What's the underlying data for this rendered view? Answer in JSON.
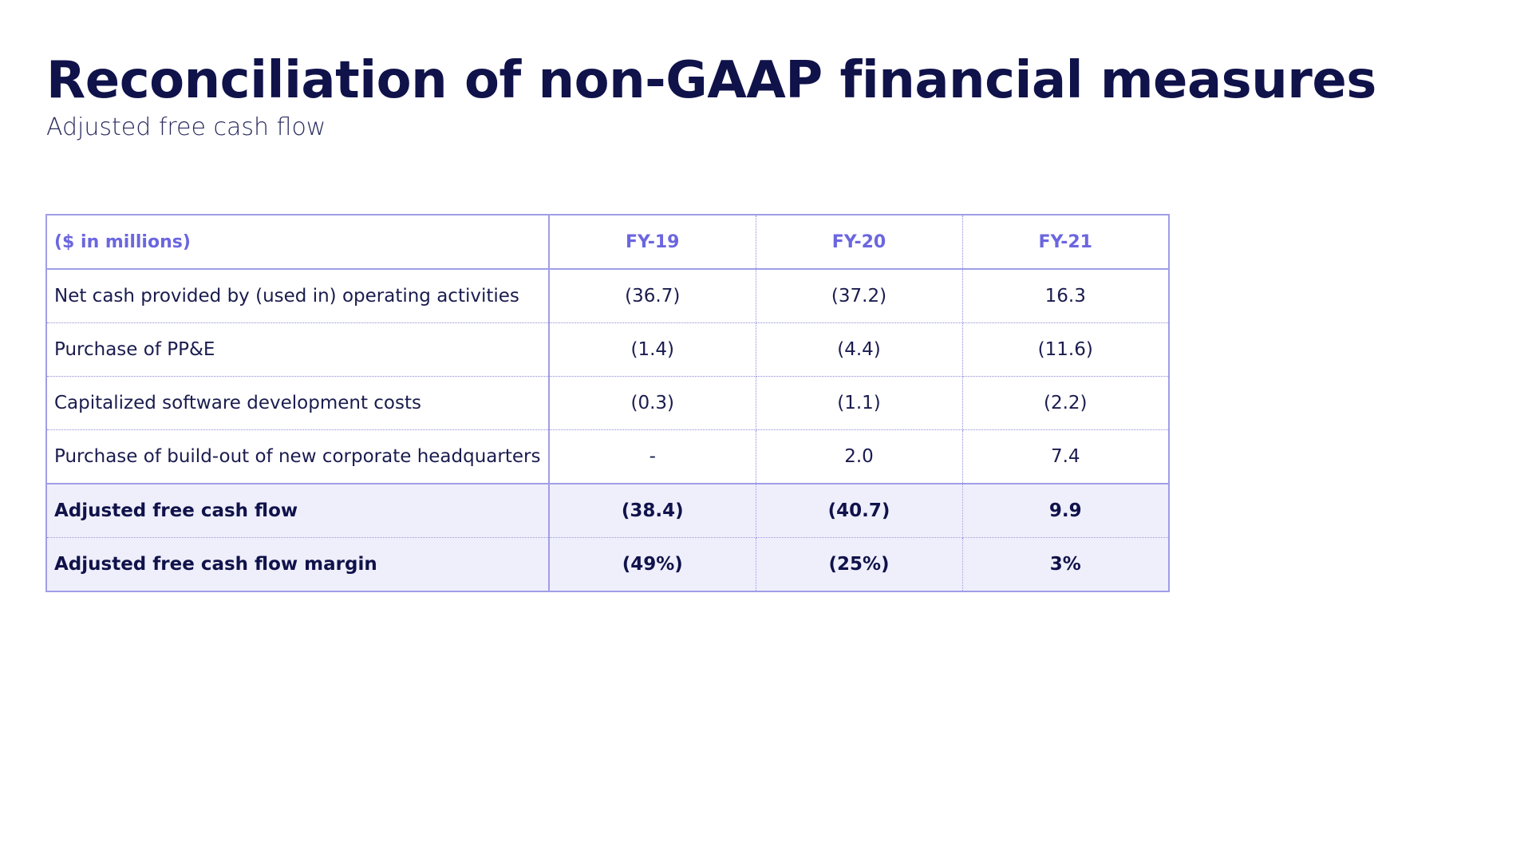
{
  "slide": {
    "title": "Reconciliation of non-GAAP financial measures",
    "subtitle": "Adjusted free cash flow"
  },
  "table": {
    "unit_header": "($ in millions)",
    "columns": [
      "FY-19",
      "FY-20",
      "FY-21"
    ],
    "rows": [
      {
        "label": "Net cash provided by (used in) operating activities",
        "values": [
          "(36.7)",
          "(37.2)",
          "16.3"
        ],
        "bold": false
      },
      {
        "label": "Purchase of PP&E",
        "values": [
          "(1.4)",
          "(4.4)",
          "(11.6)"
        ],
        "bold": false
      },
      {
        "label": "Capitalized software development costs",
        "values": [
          "(0.3)",
          "(1.1)",
          "(2.2)"
        ],
        "bold": false
      },
      {
        "label": "Purchase of build-out of new corporate headquarters",
        "values": [
          "-",
          "2.0",
          "7.4"
        ],
        "bold": false
      },
      {
        "label": "Adjusted free cash flow",
        "values": [
          "(38.4)",
          "(40.7)",
          "9.9"
        ],
        "bold": true
      },
      {
        "label": "Adjusted free cash flow margin",
        "values": [
          "(49%)",
          "(25%)",
          "3%"
        ],
        "bold": true
      }
    ]
  },
  "colors": {
    "title": "#10124a",
    "header_text": "#6b66e0",
    "border": "#a09ee6",
    "total_row_bg": "#efeffc"
  }
}
